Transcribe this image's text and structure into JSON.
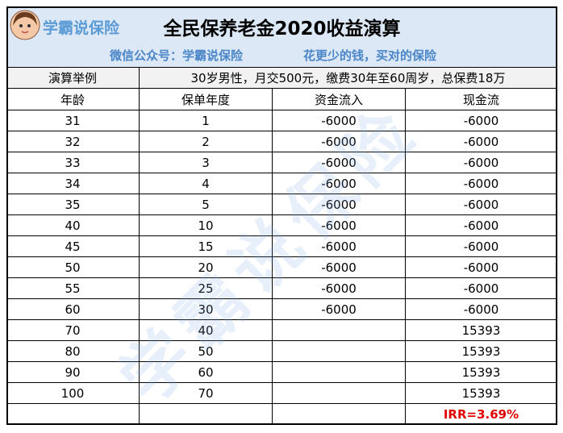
{
  "header": {
    "logo": "学霸说保险",
    "title": "全民保养老金2020收益演算",
    "subtitle_left": "微信公众号：学霸说保险",
    "subtitle_right": "花更少的钱，买对的保险"
  },
  "example": {
    "label": "演算举例",
    "text": "30岁男性，月交500元，缴费30年至60周岁，总保费18万"
  },
  "table": {
    "header": [
      "年龄",
      "保单年度",
      "资金流入",
      "现金流"
    ],
    "rows": [
      [
        31,
        1,
        -6000,
        -6000
      ],
      [
        32,
        2,
        -6000,
        -6000
      ],
      [
        33,
        3,
        -6000,
        -6000
      ],
      [
        34,
        4,
        -6000,
        -6000
      ],
      [
        35,
        5,
        -6000,
        -6000
      ],
      [
        40,
        10,
        -6000,
        -6000
      ],
      [
        45,
        15,
        -6000,
        -6000
      ],
      [
        50,
        20,
        -6000,
        -6000
      ],
      [
        55,
        25,
        -6000,
        -6000
      ],
      [
        60,
        30,
        -6000,
        -6000
      ],
      [
        70,
        40,
        null,
        15393
      ],
      [
        80,
        50,
        null,
        15393
      ],
      [
        90,
        60,
        null,
        15393
      ],
      [
        100,
        70,
        null,
        15393
      ]
    ],
    "irr": "IRR=3.69%"
  },
  "watermark": "学霸说保险"
}
